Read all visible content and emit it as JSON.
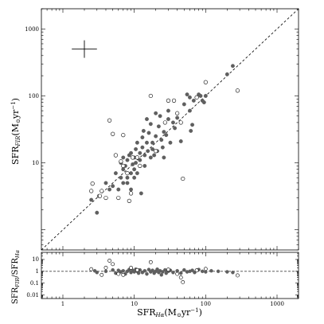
{
  "chart_data": [
    {
      "type": "scatter",
      "panel": "main",
      "xscale": "log",
      "yscale": "log",
      "xlim": [
        0.5,
        2000
      ],
      "ylim": [
        0.5,
        2000
      ],
      "xticks": [
        1,
        10,
        100,
        1000
      ],
      "yticks": [
        10,
        100,
        1000
      ],
      "ytick_labels": [
        "10",
        "100",
        "1000"
      ],
      "xlabel_main": "SFR",
      "xlabel_sub": "Hα",
      "xlabel_unit": "(M",
      "xlabel_unit_sub": "⊙",
      "xlabel_unit_rest": "yr",
      "xlabel_unit_sup": "−1",
      "xlabel_close": ")",
      "ylabel_main": "SFR",
      "ylabel_sub": "FIR",
      "ylabel_unit": "(M",
      "ylabel_unit_sub": "⊙",
      "ylabel_unit_rest": "yr",
      "ylabel_unit_sup": "−1",
      "ylabel_close": ")",
      "reference_line": "one-to-one",
      "error_cross": {
        "x": 2.0,
        "y": 500,
        "dx_factor": 1.5,
        "dy_factor": 1.35
      },
      "series": [
        {
          "marker": "filled",
          "color": "#5f5f5f",
          "points": [
            [
              2.5,
              2.8
            ],
            [
              3,
              1.8
            ],
            [
              3.2,
              3.2
            ],
            [
              4,
              5
            ],
            [
              4.5,
              4
            ],
            [
              5,
              4.5
            ],
            [
              5.5,
              7
            ],
            [
              6,
              4
            ],
            [
              6.5,
              10
            ],
            [
              6.5,
              6
            ],
            [
              7,
              8
            ],
            [
              7,
              12
            ],
            [
              7,
              5
            ],
            [
              7.5,
              9
            ],
            [
              8,
              11
            ],
            [
              8,
              6
            ],
            [
              8,
              5
            ],
            [
              8.5,
              13
            ],
            [
              9,
              7
            ],
            [
              9,
              14
            ],
            [
              9,
              4
            ],
            [
              9.5,
              9.5
            ],
            [
              10,
              12
            ],
            [
              10,
              8
            ],
            [
              10,
              6
            ],
            [
              10.5,
              16
            ],
            [
              10.5,
              10
            ],
            [
              11,
              20
            ],
            [
              11,
              7
            ],
            [
              12,
              11
            ],
            [
              12,
              14
            ],
            [
              12,
              9
            ],
            [
              12.5,
              3.5
            ],
            [
              13,
              24
            ],
            [
              13,
              17
            ],
            [
              13.5,
              30
            ],
            [
              14,
              13
            ],
            [
              14,
              9
            ],
            [
              15,
              45
            ],
            [
              15,
              20
            ],
            [
              15.5,
              15
            ],
            [
              16,
              28
            ],
            [
              17,
              38
            ],
            [
              17,
              12
            ],
            [
              18,
              20
            ],
            [
              18,
              16
            ],
            [
              19,
              13
            ],
            [
              20,
              55
            ],
            [
              20,
              25
            ],
            [
              21,
              15
            ],
            [
              22,
              35
            ],
            [
              23,
              50
            ],
            [
              24,
              22
            ],
            [
              25,
              17
            ],
            [
              26,
              12
            ],
            [
              26,
              29
            ],
            [
              28,
              26
            ],
            [
              30,
              85
            ],
            [
              30,
              60
            ],
            [
              30,
              45
            ],
            [
              32,
              20
            ],
            [
              35,
              40
            ],
            [
              37,
              33
            ],
            [
              40,
              47
            ],
            [
              45,
              21
            ],
            [
              50,
              75
            ],
            [
              55,
              105
            ],
            [
              60,
              95
            ],
            [
              60,
              60
            ],
            [
              62,
              30
            ],
            [
              65,
              37
            ],
            [
              68,
              85
            ],
            [
              75,
              95
            ],
            [
              80,
              105
            ],
            [
              85,
              100
            ],
            [
              90,
              85
            ],
            [
              95,
              80
            ],
            [
              100,
              100
            ],
            [
              200,
              210
            ],
            [
              240,
              280
            ]
          ]
        },
        {
          "marker": "open",
          "color": "#5f5f5f",
          "points": [
            [
              2.5,
              3.8
            ],
            [
              2.6,
              4.9
            ],
            [
              3.3,
              3.2
            ],
            [
              3.5,
              3.8
            ],
            [
              4,
              3
            ],
            [
              4.5,
              43
            ],
            [
              5,
              27
            ],
            [
              5.5,
              13
            ],
            [
              6,
              3
            ],
            [
              6.5,
              10.5
            ],
            [
              7,
              26
            ],
            [
              7,
              9
            ],
            [
              8,
              7
            ],
            [
              8.5,
              2.7
            ],
            [
              9,
              3.5
            ],
            [
              9.5,
              12
            ],
            [
              11,
              12
            ],
            [
              12,
              9
            ],
            [
              17,
              100
            ],
            [
              20,
              15
            ],
            [
              27,
              40
            ],
            [
              30,
              85
            ],
            [
              36,
              85
            ],
            [
              40,
              55
            ],
            [
              45,
              40
            ],
            [
              48,
              5.8
            ],
            [
              75,
              95
            ],
            [
              100,
              160
            ],
            [
              280,
              120
            ]
          ]
        }
      ]
    },
    {
      "type": "scatter",
      "panel": "ratio",
      "xscale": "log",
      "yscale": "log",
      "xlim": [
        0.5,
        2000
      ],
      "ylim": [
        0.005,
        40
      ],
      "yticks": [
        0.01,
        0.1,
        1,
        10
      ],
      "ytick_labels": [
        "0.01",
        "0.1",
        "1",
        "10"
      ],
      "xtick_labels": [
        "1",
        "10",
        "100",
        "1000"
      ],
      "ylabel_top": "SFR",
      "ylabel_top_sub": "FIR",
      "ylabel_slash": "/SFR",
      "ylabel_bottom_sub": "Hα",
      "reference_value": 1,
      "series": [
        {
          "marker": "filled",
          "color": "#5f5f5f",
          "points": [
            [
              2.8,
              1.1
            ],
            [
              3,
              0.8
            ],
            [
              4,
              1.0
            ],
            [
              5,
              1.3
            ],
            [
              5.5,
              0.7
            ],
            [
              6,
              1.2
            ],
            [
              6.5,
              0.9
            ],
            [
              7,
              1.1
            ],
            [
              7.5,
              0.6
            ],
            [
              8,
              1.0
            ],
            [
              8.5,
              1.4
            ],
            [
              9,
              0.8
            ],
            [
              9.5,
              1.2
            ],
            [
              10,
              0.9
            ],
            [
              10.5,
              1.5
            ],
            [
              11,
              1.0
            ],
            [
              11.5,
              0.7
            ],
            [
              12,
              1.3
            ],
            [
              13,
              0.8
            ],
            [
              14,
              1.1
            ],
            [
              15,
              0.6
            ],
            [
              16,
              1.4
            ],
            [
              17,
              0.9
            ],
            [
              18,
              1.2
            ],
            [
              19,
              0.7
            ],
            [
              20,
              1.0
            ],
            [
              21,
              1.5
            ],
            [
              22,
              0.8
            ],
            [
              23,
              1.1
            ],
            [
              24,
              0.5
            ],
            [
              25,
              0.9
            ],
            [
              27,
              1.3
            ],
            [
              28,
              0.7
            ],
            [
              30,
              1.0
            ],
            [
              32,
              1.2
            ],
            [
              35,
              0.8
            ],
            [
              40,
              1.1
            ],
            [
              45,
              0.7
            ],
            [
              50,
              1.3
            ],
            [
              55,
              0.9
            ],
            [
              60,
              1.0
            ],
            [
              65,
              1.2
            ],
            [
              70,
              0.8
            ],
            [
              80,
              1.4
            ],
            [
              90,
              1.0
            ],
            [
              100,
              0.9
            ],
            [
              120,
              1.1
            ],
            [
              150,
              1.0
            ],
            [
              200,
              0.9
            ],
            [
              240,
              0.8
            ]
          ]
        },
        {
          "marker": "open",
          "color": "#5f5f5f",
          "points": [
            [
              2.5,
              1.5
            ],
            [
              3.5,
              0.5
            ],
            [
              4,
              2.0
            ],
            [
              4.5,
              8
            ],
            [
              5,
              4
            ],
            [
              6,
              0.6
            ],
            [
              7,
              0.5
            ],
            [
              9,
              2
            ],
            [
              11,
              1.3
            ],
            [
              17,
              6
            ],
            [
              30,
              1.4
            ],
            [
              40,
              0.6
            ],
            [
              45,
              0.3
            ],
            [
              48,
              0.12
            ],
            [
              75,
              1.2
            ],
            [
              100,
              1.6
            ],
            [
              280,
              0.45
            ]
          ]
        }
      ]
    }
  ]
}
